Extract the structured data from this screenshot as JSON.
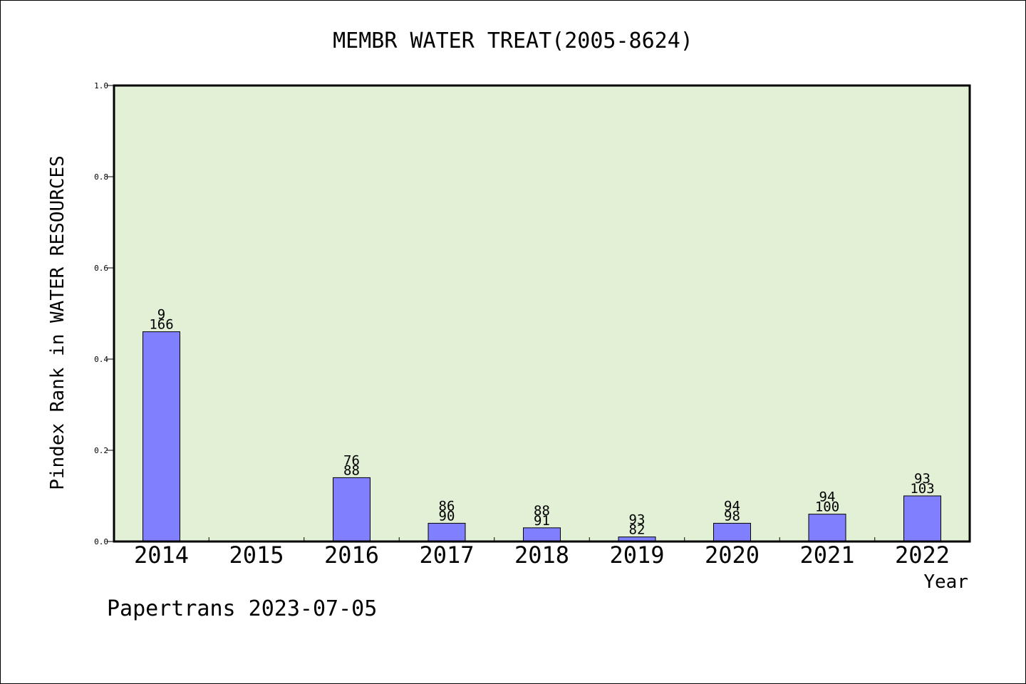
{
  "chart_data": {
    "type": "bar",
    "title": "MEMBR WATER TREAT(2005-8624)",
    "xlabel": "Year",
    "ylabel": "Pindex Rank in WATER RESOURCES",
    "ylim": [
      0,
      1.0
    ],
    "yticks": [
      "0.0",
      "0.2",
      "0.4",
      "0.6",
      "0.8",
      "1.0"
    ],
    "categories": [
      "2014",
      "2015",
      "2016",
      "2017",
      "2018",
      "2019",
      "2020",
      "2021",
      "2022"
    ],
    "values": [
      0.46,
      null,
      0.14,
      0.04,
      0.03,
      0.01,
      0.04,
      0.06,
      0.1
    ],
    "label_top": [
      "9",
      "",
      "76",
      "86",
      "88",
      "93",
      "94",
      "94",
      "93"
    ],
    "label_bottom": [
      "166",
      "",
      "88",
      "90",
      "91",
      "82",
      "98",
      "100",
      "103"
    ],
    "grid": false,
    "legend": "none",
    "colors": {
      "plot_bg": "#e2f0d6",
      "bar": "#8080ff",
      "axis": "#000000"
    }
  },
  "footer": {
    "text": "Papertrans 2023-07-05"
  }
}
